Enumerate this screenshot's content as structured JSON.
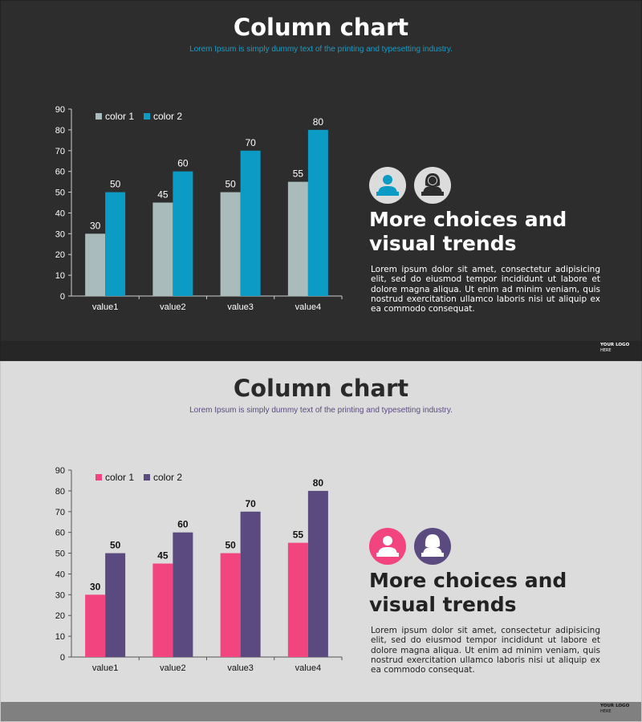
{
  "slides": [
    {
      "theme": "dark",
      "title": "Column chart",
      "subtitle": "Lorem Ipsum is simply dummy text of the printing and typesetting industry.",
      "heading_line1": "More choices and",
      "heading_line2": "visual trends",
      "body": "Lorem ipsum dolor sit amet, consectetur adipisicing elit, sed do eiusmod tempor incididunt ut labore et dolore magna aliqua. Ut enim ad minim veniam, quis nostrud exercitation ullamco laboris nisi ut aliquip ex ea commodo consequat.",
      "logo_line1": "YOUR LOGO",
      "logo_line2": "HERE",
      "icons": [
        "man-speaker-icon",
        "woman-speaker-icon"
      ],
      "colors": {
        "series1": "#a9bcbb",
        "series2": "#0b9bc4",
        "text": "#ffffff",
        "axis": "#cfcfcf",
        "icon_bg": [
          "#dcdcdc",
          "#dcdcdc"
        ],
        "icon_fg": [
          "#0b9bc4",
          "#2d2d2d"
        ],
        "label_weight": "normal"
      }
    },
    {
      "theme": "light",
      "title": "Column chart",
      "subtitle": "Lorem Ipsum is simply dummy text of the printing and typesetting industry.",
      "heading_line1": "More choices and",
      "heading_line2": "visual trends",
      "body": "Lorem ipsum dolor sit amet, consectetur adipisicing elit, sed do eiusmod tempor incididunt ut labore et dolore magna aliqua. Ut enim ad minim veniam, quis nostrud exercitation ullamco laboris nisi ut aliquip ex ea commodo consequat.",
      "logo_line1": "YOUR LOGO",
      "logo_line2": "HERE",
      "icons": [
        "man-speaker-icon",
        "woman-speaker-icon"
      ],
      "colors": {
        "series1": "#f2447f",
        "series2": "#5b4a80",
        "text": "#111111",
        "axis": "#555555",
        "icon_bg": [
          "#f2447f",
          "#5b4a80"
        ],
        "icon_fg": [
          "#ffffff",
          "#ffffff"
        ],
        "label_weight": "bold"
      }
    }
  ],
  "chart_data": [
    {
      "type": "bar",
      "categories": [
        "value1",
        "value2",
        "value3",
        "value4"
      ],
      "series": [
        {
          "name": "color 1",
          "values": [
            30,
            45,
            50,
            55
          ]
        },
        {
          "name": "color 2",
          "values": [
            50,
            60,
            70,
            80
          ]
        }
      ],
      "ylim": [
        0,
        90
      ],
      "yticks": [
        0,
        10,
        20,
        30,
        40,
        50,
        60,
        70,
        80,
        90
      ],
      "grid": false,
      "legend": "top-left",
      "data_labels": true
    },
    {
      "type": "bar",
      "categories": [
        "value1",
        "value2",
        "value3",
        "value4"
      ],
      "series": [
        {
          "name": "color 1",
          "values": [
            30,
            45,
            50,
            55
          ]
        },
        {
          "name": "color 2",
          "values": [
            50,
            60,
            70,
            80
          ]
        }
      ],
      "ylim": [
        0,
        90
      ],
      "yticks": [
        0,
        10,
        20,
        30,
        40,
        50,
        60,
        70,
        80,
        90
      ],
      "grid": false,
      "legend": "top-left",
      "data_labels": true
    }
  ]
}
